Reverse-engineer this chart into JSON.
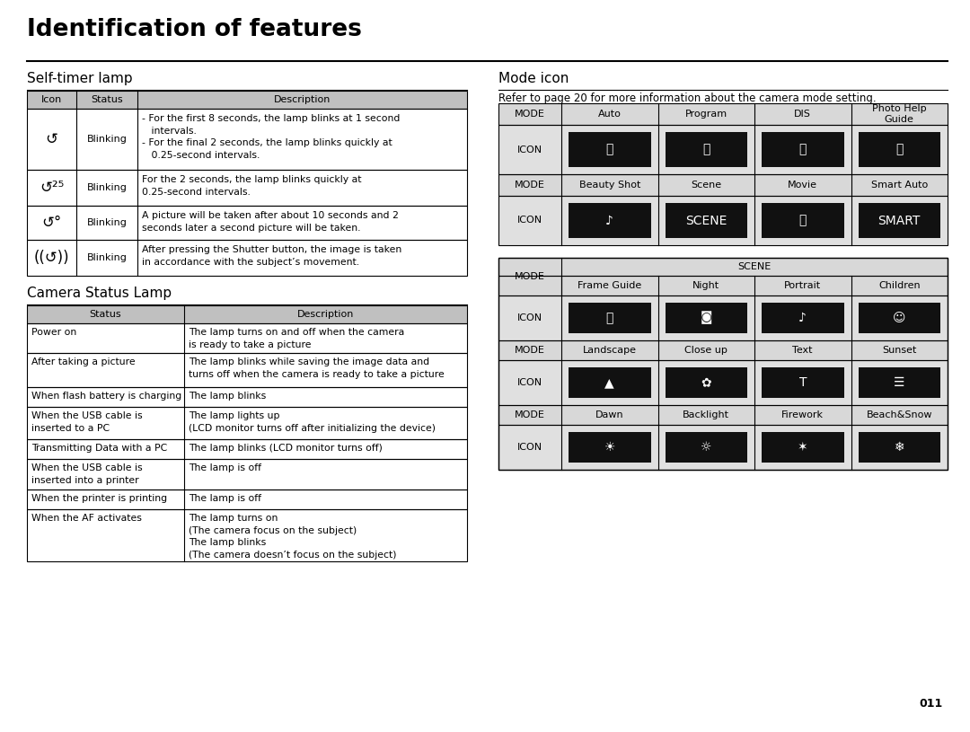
{
  "title": "Identification of features",
  "bg_color": "#ffffff",
  "header_bg": "#c0c0c0",
  "row_bg_light": "#e8e8e8",
  "left_section_title": "Self-timer lamp",
  "right_section_title": "Mode icon",
  "camera_status_title": "Camera Status Lamp",
  "mode_refer_text": "Refer to page 20 for more information about the camera mode setting.",
  "self_timer_headers": [
    "Icon",
    "Status",
    "Description"
  ],
  "self_timer_rows": [
    {
      "icon": "↺",
      "status": "Blinking",
      "desc": "- For the first 8 seconds, the lamp blinks at 1 second\n   intervals.\n- For the final 2 seconds, the lamp blinks quickly at\n   0.25-second intervals."
    },
    {
      "icon": "↺²⁵",
      "status": "Blinking",
      "desc": "For the 2 seconds, the lamp blinks quickly at\n0.25-second intervals."
    },
    {
      "icon": "↺°",
      "status": "Blinking",
      "desc": "A picture will be taken after about 10 seconds and 2\nseconds later a second picture will be taken."
    },
    {
      "icon": "((↺))",
      "status": "Blinking",
      "desc": "After pressing the Shutter button, the image is taken\nin accordance with the subject’s movement."
    }
  ],
  "camera_status_headers": [
    "Status",
    "Description"
  ],
  "camera_status_rows": [
    [
      "Power on",
      "The lamp turns on and off when the camera\nis ready to take a picture"
    ],
    [
      "After taking a picture",
      "The lamp blinks while saving the image data and\nturns off when the camera is ready to take a picture"
    ],
    [
      "When flash battery is charging",
      "The lamp blinks"
    ],
    [
      "When the USB cable is\ninserted to a PC",
      "The lamp lights up\n(LCD monitor turns off after initializing the device)"
    ],
    [
      "Transmitting Data with a PC",
      "The lamp blinks (LCD monitor turns off)"
    ],
    [
      "When the USB cable is\ninserted into a printer",
      "The lamp is off"
    ],
    [
      "When the printer is printing",
      "The lamp is off"
    ],
    [
      "When the AF activates",
      "The lamp turns on\n(The camera focus on the subject)\nThe lamp blinks\n(The camera doesn’t focus on the subject)"
    ]
  ],
  "page_number": "011"
}
